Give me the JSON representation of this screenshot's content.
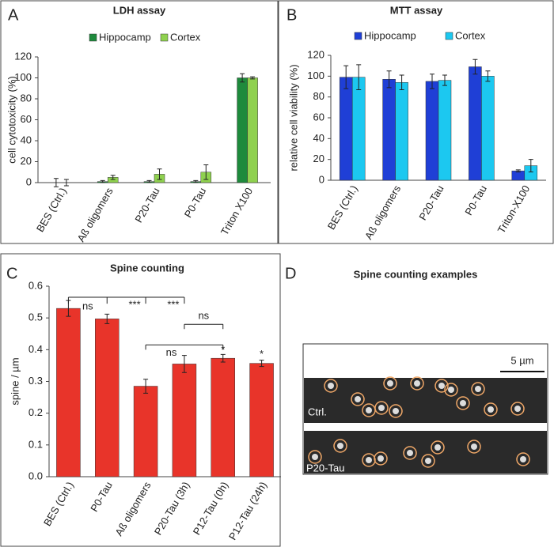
{
  "chart_data": [
    {
      "type": "bar",
      "panel": "A",
      "title": "LDH assay",
      "y_label": "cell cytotoxicity (%)",
      "categories": [
        "BES (Ctrl.)",
        "Aß oligomers",
        "P20-Tau",
        "P0-Tau",
        "Triton X100"
      ],
      "series": [
        {
          "name": "Hippocamp",
          "color": "#1e8a3c",
          "values": [
            0,
            1,
            1,
            1,
            100
          ],
          "errors": [
            4,
            1,
            1,
            1,
            4
          ]
        },
        {
          "name": "Cortex",
          "color": "#8fd14f",
          "values": [
            0,
            5,
            8,
            10,
            100
          ],
          "errors": [
            3,
            2,
            5,
            7,
            1
          ]
        }
      ],
      "ylim": [
        0,
        120
      ],
      "yticks": [
        0,
        20,
        40,
        60,
        80,
        100,
        120
      ]
    },
    {
      "type": "bar",
      "panel": "B",
      "title": "MTT assay",
      "y_label": "relative cell viability  (%)",
      "categories": [
        "BES (Ctrl.)",
        "Aß oligomers",
        "P20-Tau",
        "P0-Tau",
        "Triton-X100"
      ],
      "series": [
        {
          "name": "Hippocamp",
          "color": "#1f3fd6",
          "values": [
            99,
            97,
            95,
            109,
            9
          ],
          "errors": [
            11,
            8,
            7,
            7,
            1
          ]
        },
        {
          "name": "Cortex",
          "color": "#1cc8f0",
          "values": [
            99,
            94,
            96,
            100,
            14
          ],
          "errors": [
            12,
            7,
            5,
            5,
            6
          ]
        }
      ],
      "ylim": [
        0,
        120
      ],
      "yticks": [
        0,
        20,
        40,
        60,
        80,
        100,
        120
      ]
    },
    {
      "type": "bar",
      "panel": "C",
      "title": "Spine counting",
      "y_label": "spine / µm",
      "categories": [
        "BES (Ctrl.)",
        "P0-Tau",
        "Aß oligomers",
        "P20-Tau (3h)",
        "P12-Tau (0h)",
        "P12-Tau (24h)"
      ],
      "values": [
        0.53,
        0.497,
        0.285,
        0.355,
        0.373,
        0.357
      ],
      "errors": [
        0.025,
        0.015,
        0.022,
        0.027,
        0.012,
        0.01
      ],
      "color": "#e8342a",
      "ylim": [
        0,
        0.6
      ],
      "yticks": [
        {
          "value": 0,
          "label": "0.0"
        },
        0.1,
        0.2,
        0.3,
        0.4,
        0.5,
        0.6
      ],
      "annotations": [
        "ns",
        "***",
        "***",
        "ns",
        "ns",
        "*",
        "*"
      ]
    }
  ],
  "image_panel": {
    "panel": "D",
    "title": "Spine counting examples",
    "scale_bar": "5 µm",
    "rows": [
      "Ctrl.",
      "P20-Tau"
    ]
  }
}
